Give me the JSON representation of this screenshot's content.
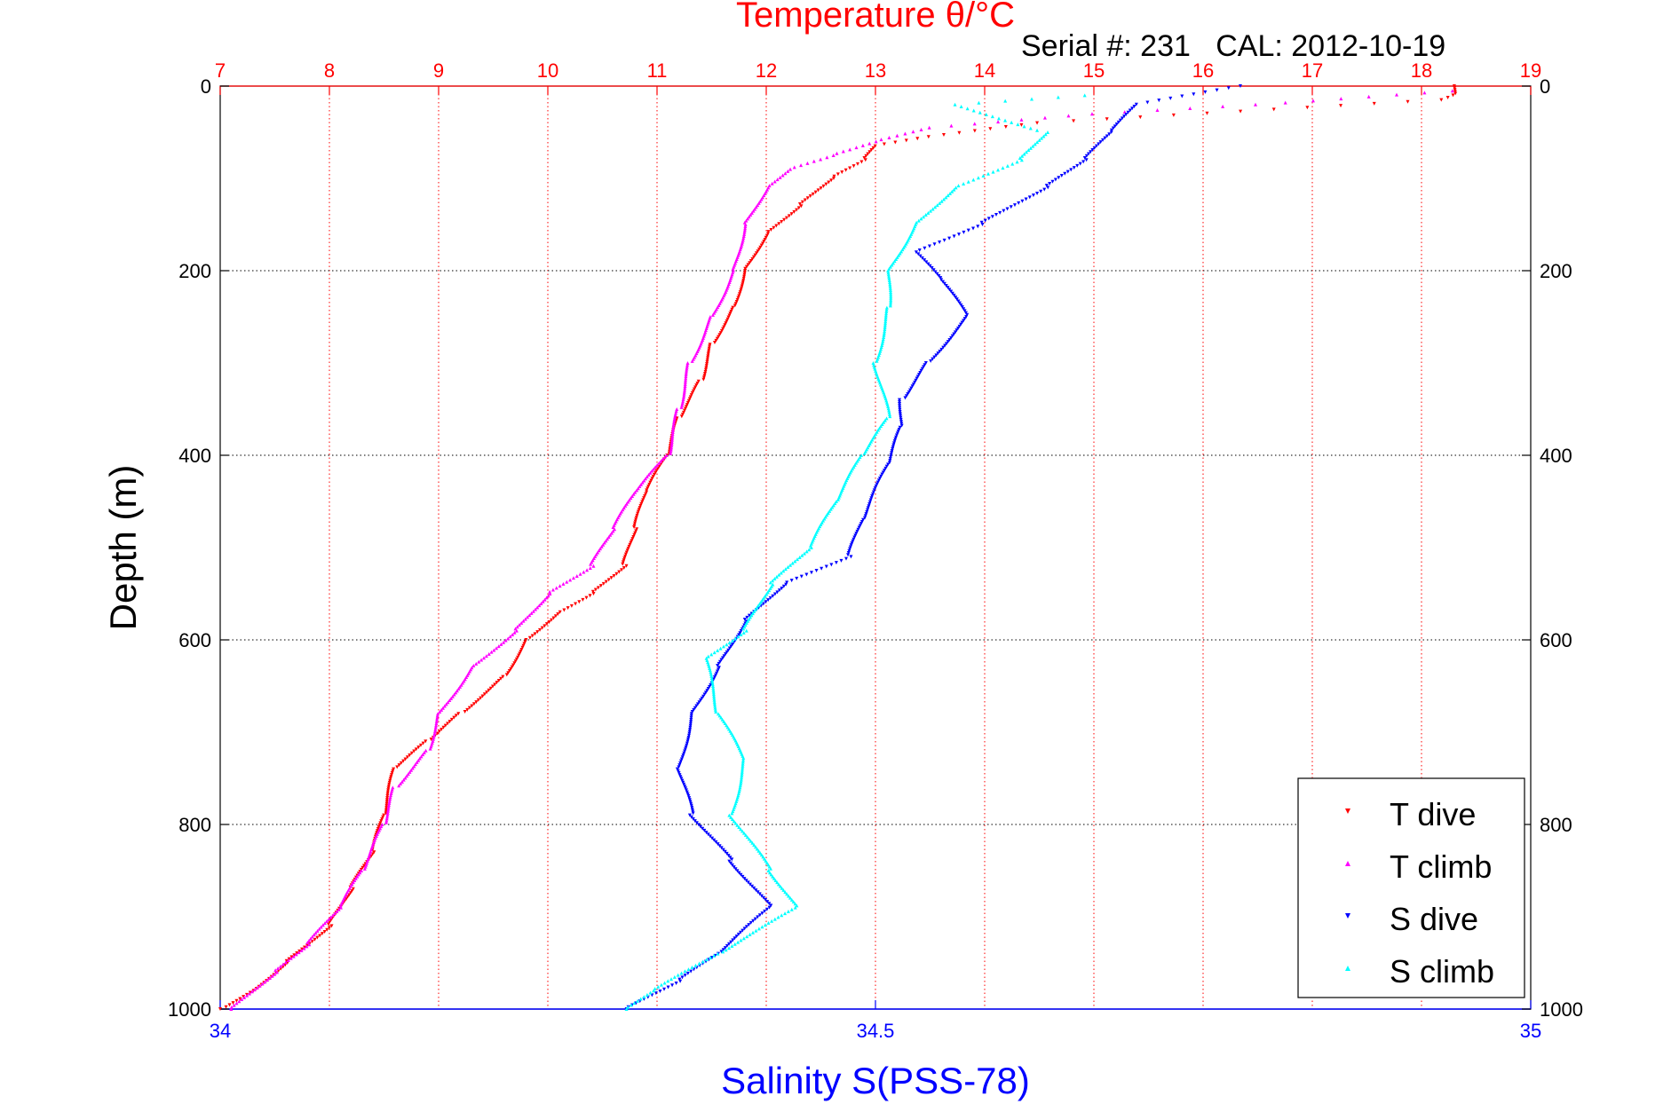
{
  "chart_data": {
    "type": "scatter",
    "title": "Temperature θ/°C",
    "subtitle": "Serial #: 231   CAL: 2012-10-19",
    "ylabel": "Depth (m)",
    "xlabel": "Salinity S(PSS-78)",
    "ylim": [
      0,
      1000
    ],
    "y_reversed": true,
    "temperature_axis": {
      "range": [
        7,
        19
      ],
      "ticks": [
        "7",
        "8",
        "9",
        "10",
        "11",
        "12",
        "13",
        "14",
        "15",
        "16",
        "17",
        "18",
        "19"
      ],
      "color": "#ff0000",
      "position": "top"
    },
    "salinity_axis": {
      "range": [
        34,
        35
      ],
      "ticks": [
        "34",
        "34.5",
        "35"
      ],
      "color": "#0000ff",
      "position": "bottom"
    },
    "depth_ticks": [
      "0",
      "200",
      "400",
      "600",
      "800",
      "1000"
    ],
    "grid": true,
    "legend_position": "bottom-right",
    "series": [
      {
        "name": "T dive",
        "axis": "temperature",
        "color": "#ff0000",
        "marker": "triangle-down",
        "points": [
          [
            18.3,
            0
          ],
          [
            18.3,
            10
          ],
          [
            18.2,
            15
          ],
          [
            14.5,
            40
          ],
          [
            13.5,
            55
          ],
          [
            13.0,
            65
          ],
          [
            12.9,
            80
          ],
          [
            12.6,
            100
          ],
          [
            12.3,
            130
          ],
          [
            12.0,
            160
          ],
          [
            11.8,
            200
          ],
          [
            11.7,
            240
          ],
          [
            11.5,
            280
          ],
          [
            11.4,
            320
          ],
          [
            11.2,
            360
          ],
          [
            11.1,
            400
          ],
          [
            10.9,
            440
          ],
          [
            10.8,
            480
          ],
          [
            10.7,
            520
          ],
          [
            10.4,
            550
          ],
          [
            10.1,
            570
          ],
          [
            9.8,
            600
          ],
          [
            9.6,
            640
          ],
          [
            9.2,
            680
          ],
          [
            8.9,
            710
          ],
          [
            8.6,
            740
          ],
          [
            8.5,
            790
          ],
          [
            8.4,
            830
          ],
          [
            8.2,
            870
          ],
          [
            8.0,
            910
          ],
          [
            7.6,
            950
          ],
          [
            7.3,
            980
          ],
          [
            7.0,
            1000
          ]
        ]
      },
      {
        "name": "T climb",
        "axis": "temperature",
        "color": "#ff00ff",
        "marker": "triangle-up",
        "points": [
          [
            18.3,
            5
          ],
          [
            16.5,
            20
          ],
          [
            15.0,
            30
          ],
          [
            13.5,
            45
          ],
          [
            13.0,
            60
          ],
          [
            12.6,
            75
          ],
          [
            12.2,
            90
          ],
          [
            12.0,
            110
          ],
          [
            11.8,
            150
          ],
          [
            11.7,
            200
          ],
          [
            11.5,
            250
          ],
          [
            11.3,
            300
          ],
          [
            11.2,
            350
          ],
          [
            11.1,
            400
          ],
          [
            10.8,
            440
          ],
          [
            10.6,
            480
          ],
          [
            10.4,
            520
          ],
          [
            10.0,
            550
          ],
          [
            9.7,
            590
          ],
          [
            9.3,
            630
          ],
          [
            9.0,
            680
          ],
          [
            8.9,
            720
          ],
          [
            8.6,
            760
          ],
          [
            8.5,
            800
          ],
          [
            8.3,
            850
          ],
          [
            8.1,
            890
          ],
          [
            7.8,
            930
          ],
          [
            7.5,
            960
          ],
          [
            7.1,
            1000
          ]
        ]
      },
      {
        "name": "S dive",
        "axis": "salinity",
        "color": "#0000ff",
        "marker": "triangle-down",
        "points": [
          [
            34.78,
            0
          ],
          [
            34.7,
            20
          ],
          [
            34.68,
            50
          ],
          [
            34.66,
            80
          ],
          [
            34.63,
            110
          ],
          [
            34.58,
            150
          ],
          [
            34.53,
            180
          ],
          [
            34.55,
            210
          ],
          [
            34.57,
            250
          ],
          [
            34.54,
            300
          ],
          [
            34.52,
            340
          ],
          [
            34.52,
            370
          ],
          [
            34.51,
            410
          ],
          [
            34.49,
            470
          ],
          [
            34.48,
            510
          ],
          [
            34.43,
            540
          ],
          [
            34.4,
            580
          ],
          [
            34.38,
            630
          ],
          [
            34.36,
            680
          ],
          [
            34.35,
            740
          ],
          [
            34.36,
            790
          ],
          [
            34.39,
            840
          ],
          [
            34.42,
            890
          ],
          [
            34.38,
            940
          ],
          [
            34.35,
            970
          ],
          [
            34.31,
            1000
          ]
        ]
      },
      {
        "name": "S climb",
        "axis": "salinity",
        "color": "#00ffff",
        "marker": "triangle-up",
        "points": [
          [
            34.66,
            10
          ],
          [
            34.56,
            20
          ],
          [
            34.63,
            50
          ],
          [
            34.61,
            80
          ],
          [
            34.56,
            110
          ],
          [
            34.53,
            150
          ],
          [
            34.51,
            200
          ],
          [
            34.51,
            240
          ],
          [
            34.5,
            300
          ],
          [
            34.51,
            360
          ],
          [
            34.49,
            400
          ],
          [
            34.47,
            450
          ],
          [
            34.45,
            500
          ],
          [
            34.42,
            540
          ],
          [
            34.4,
            590
          ],
          [
            34.37,
            620
          ],
          [
            34.38,
            680
          ],
          [
            34.4,
            730
          ],
          [
            34.39,
            790
          ],
          [
            34.42,
            850
          ],
          [
            34.44,
            890
          ],
          [
            34.38,
            940
          ],
          [
            34.33,
            980
          ],
          [
            34.31,
            1000
          ]
        ]
      }
    ]
  }
}
